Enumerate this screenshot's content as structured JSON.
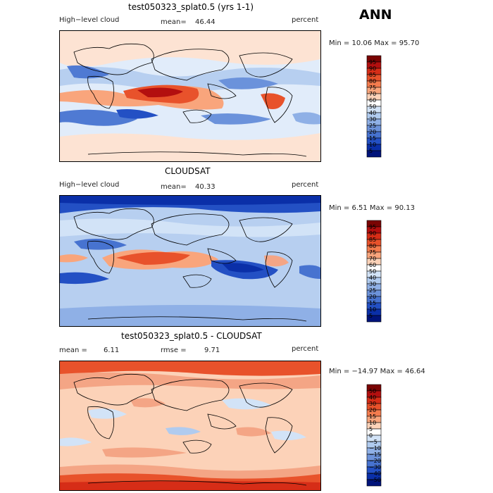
{
  "season": "ANN",
  "panels": [
    {
      "title": "test050323_splat0.5 (yrs 1-1)",
      "left_label": "High−level cloud",
      "center_label": "mean=",
      "center_value": "46.44",
      "right_label": "percent",
      "minmax": "Min =   10.06 Max =   95.70",
      "colorbar_levels": [
        "95",
        "90",
        "85",
        "80",
        "75",
        "70",
        "60",
        "50",
        "40",
        "30",
        "25",
        "20",
        "15",
        "10",
        "5"
      ],
      "colorbar_colors": [
        "#7a0403",
        "#b30f0f",
        "#d62d17",
        "#e8522b",
        "#f47c4e",
        "#f9a57c",
        "#fcd2b8",
        "#ffffff",
        "#d2e3f7",
        "#b0cbef",
        "#8fb0e6",
        "#6c92da",
        "#4773d0",
        "#2350c4",
        "#0a2fa8",
        "#00137a"
      ]
    },
    {
      "title": "CLOUDSAT",
      "left_label": "High−level cloud",
      "center_label": "mean=",
      "center_value": "40.33",
      "right_label": "percent",
      "minmax": "Min =    6.51 Max =   90.13",
      "colorbar_levels": [
        "95",
        "90",
        "85",
        "80",
        "75",
        "70",
        "60",
        "50",
        "40",
        "30",
        "25",
        "20",
        "15",
        "10",
        "5"
      ],
      "colorbar_colors": [
        "#7a0403",
        "#b30f0f",
        "#d62d17",
        "#e8522b",
        "#f47c4e",
        "#f9a57c",
        "#fcd2b8",
        "#ffffff",
        "#d2e3f7",
        "#b0cbef",
        "#8fb0e6",
        "#6c92da",
        "#4773d0",
        "#2350c4",
        "#0a2fa8",
        "#00137a"
      ]
    },
    {
      "title": "test050323_splat0.5 - CLOUDSAT",
      "left_label": "mean =",
      "left_value": "6.11",
      "center_label": "rmse =",
      "center_value": "9.71",
      "right_label": "percent",
      "minmax": "Min = −14.97 Max =   46.64",
      "colorbar_levels": [
        "50",
        "40",
        "30",
        "20",
        "15",
        "10",
        "5",
        "0",
        "−5",
        "−10",
        "−15",
        "−20",
        "−30",
        "−40",
        "−50"
      ],
      "colorbar_colors": [
        "#7a0403",
        "#b30f0f",
        "#d62d17",
        "#e8522b",
        "#f47c4e",
        "#f9a57c",
        "#fcd2b8",
        "#ffffff",
        "#d2e3f7",
        "#b0cbef",
        "#8fb0e6",
        "#6c92da",
        "#4773d0",
        "#2350c4",
        "#0a2fa8",
        "#00137a"
      ]
    }
  ],
  "chart_data": [
    {
      "type": "heatmap",
      "title": "test050323_splat0.5 (yrs 1-1)",
      "variable": "High-level cloud",
      "units": "percent",
      "mean": 46.44,
      "min": 10.06,
      "max": 95.7,
      "levels": [
        5,
        10,
        15,
        20,
        25,
        30,
        40,
        50,
        60,
        70,
        75,
        80,
        85,
        90,
        95
      ]
    },
    {
      "type": "heatmap",
      "title": "CLOUDSAT",
      "variable": "High-level cloud",
      "units": "percent",
      "mean": 40.33,
      "min": 6.51,
      "max": 90.13,
      "levels": [
        5,
        10,
        15,
        20,
        25,
        30,
        40,
        50,
        60,
        70,
        75,
        80,
        85,
        90,
        95
      ]
    },
    {
      "type": "heatmap",
      "title": "test050323_splat0.5 - CLOUDSAT",
      "units": "percent",
      "mean": 6.11,
      "rmse": 9.71,
      "min": -14.97,
      "max": 46.64,
      "levels": [
        -50,
        -40,
        -30,
        -20,
        -15,
        -10,
        -5,
        0,
        5,
        10,
        15,
        20,
        30,
        40,
        50
      ]
    }
  ]
}
